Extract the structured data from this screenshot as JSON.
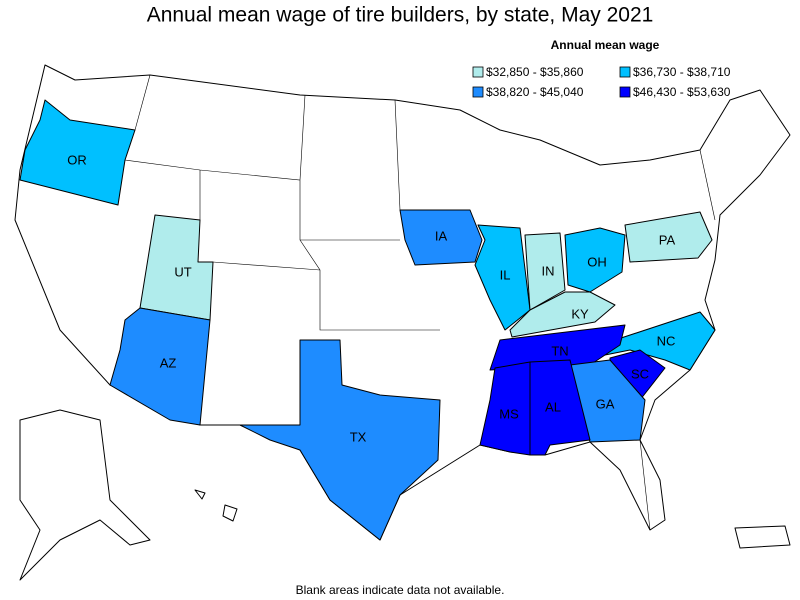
{
  "title": "Annual mean wage of tire builders, by state, May 2021",
  "legend": {
    "title": "Annual mean wage",
    "items": [
      {
        "label": "$32,850 - $35,860",
        "color": "#b0ecec"
      },
      {
        "label": "$36,730 - $38,710",
        "color": "#00c0ff"
      },
      {
        "label": "$38,820 - $45,040",
        "color": "#1e8cff"
      },
      {
        "label": "$46,430 - $53,630",
        "color": "#0000ff"
      }
    ]
  },
  "states": [
    {
      "abbr": "OR",
      "bin": 1
    },
    {
      "abbr": "UT",
      "bin": 0
    },
    {
      "abbr": "AZ",
      "bin": 2
    },
    {
      "abbr": "TX",
      "bin": 2
    },
    {
      "abbr": "IA",
      "bin": 2
    },
    {
      "abbr": "IL",
      "bin": 1
    },
    {
      "abbr": "IN",
      "bin": 0
    },
    {
      "abbr": "OH",
      "bin": 1
    },
    {
      "abbr": "KY",
      "bin": 0
    },
    {
      "abbr": "PA",
      "bin": 0
    },
    {
      "abbr": "NC",
      "bin": 1
    },
    {
      "abbr": "TN",
      "bin": 3
    },
    {
      "abbr": "SC",
      "bin": 3
    },
    {
      "abbr": "GA",
      "bin": 2
    },
    {
      "abbr": "AL",
      "bin": 3
    },
    {
      "abbr": "MS",
      "bin": 3
    }
  ],
  "footnote": "Blank areas indicate data not available."
}
